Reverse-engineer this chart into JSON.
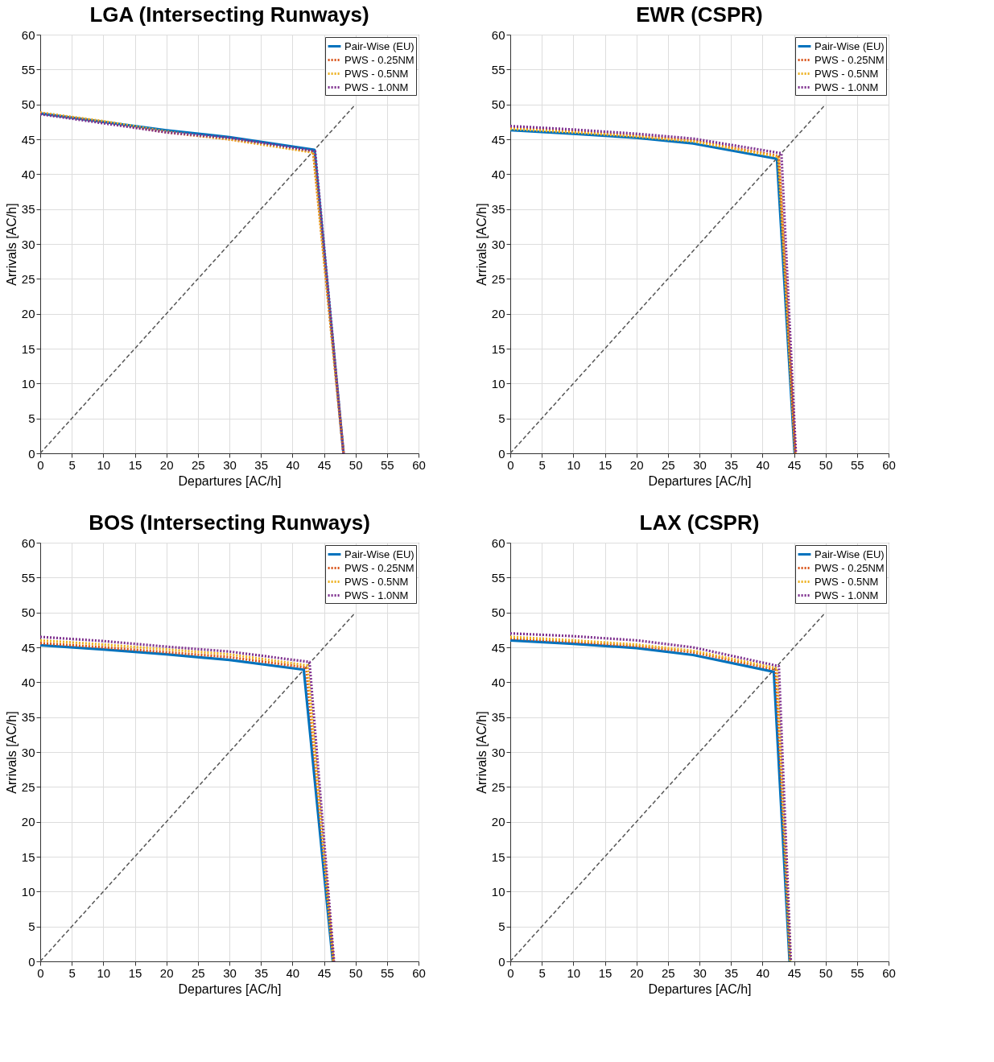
{
  "chart_data": [
    {
      "type": "line",
      "title": "LGA (Intersecting Runways)",
      "xlabel": "Departures [AC/h]",
      "ylabel": "Arrivals [AC/h]",
      "xlim": [
        0,
        60
      ],
      "ylim": [
        0,
        60
      ],
      "xticks": [
        0,
        5,
        10,
        15,
        20,
        25,
        30,
        35,
        40,
        45,
        50,
        55,
        60
      ],
      "yticks": [
        0,
        5,
        10,
        15,
        20,
        25,
        30,
        35,
        40,
        45,
        50,
        55,
        60
      ],
      "grid": true,
      "legend": "top right",
      "series": [
        {
          "name": "Pair-Wise (EU)",
          "color": "#0072bd",
          "line_style": "solid",
          "x": [
            0,
            10,
            20,
            30,
            43.5,
            48.1
          ],
          "values": [
            48.7,
            47.5,
            46.3,
            45.3,
            43.5,
            0
          ]
        },
        {
          "name": "PWS - 0.25NM",
          "color": "#d95319",
          "line_style": "dotted",
          "x": [
            0,
            10,
            20,
            30,
            43.3,
            48.1
          ],
          "values": [
            48.8,
            47.5,
            46,
            45,
            43.2,
            0
          ]
        },
        {
          "name": "PWS - 0.5NM",
          "color": "#edb120",
          "line_style": "dotted",
          "x": [
            0,
            10,
            20,
            30,
            43.3,
            48.1
          ],
          "values": [
            48.8,
            47.6,
            46.1,
            45,
            43.1,
            0
          ]
        },
        {
          "name": "PWS - 1.0NM",
          "color": "#7e2f8e",
          "line_style": "dotted",
          "x": [
            0,
            10,
            20,
            30,
            43.6,
            48.1
          ],
          "values": [
            48.6,
            47.3,
            46,
            45.2,
            43.3,
            0
          ]
        },
        {
          "color": "#555555",
          "line_style": "dashed",
          "x": [
            0,
            50
          ],
          "values": [
            0,
            50
          ]
        }
      ]
    },
    {
      "type": "line",
      "title": "EWR (CSPR)",
      "xlabel": "Departures [AC/h]",
      "ylabel": "Arrivals [AC/h]",
      "xlim": [
        0,
        60
      ],
      "ylim": [
        0,
        60
      ],
      "xticks": [
        0,
        5,
        10,
        15,
        20,
        25,
        30,
        35,
        40,
        45,
        50,
        55,
        60
      ],
      "yticks": [
        0,
        5,
        10,
        15,
        20,
        25,
        30,
        35,
        40,
        45,
        50,
        55,
        60
      ],
      "grid": true,
      "legend": "top right",
      "series": [
        {
          "name": "Pair-Wise (EU)",
          "color": "#0072bd",
          "line_style": "solid",
          "x": [
            0,
            10,
            20,
            29,
            42.3,
            45.1
          ],
          "values": [
            46.3,
            45.8,
            45.2,
            44.4,
            42.2,
            0
          ]
        },
        {
          "name": "PWS - 0.25NM",
          "color": "#d95319",
          "line_style": "dotted",
          "x": [
            0,
            10,
            20,
            29,
            42.6,
            45.2
          ],
          "values": [
            46.6,
            46.1,
            45.5,
            44.8,
            42.6,
            0
          ]
        },
        {
          "name": "PWS - 0.5NM",
          "color": "#edb120",
          "line_style": "dotted",
          "x": [
            0,
            10,
            20,
            29,
            42.5,
            45.2
          ],
          "values": [
            46.5,
            46,
            45.4,
            44.7,
            42.5,
            0
          ]
        },
        {
          "name": "PWS - 1.0NM",
          "color": "#7e2f8e",
          "line_style": "dotted",
          "x": [
            0,
            10,
            20,
            29,
            43,
            45.3
          ],
          "values": [
            46.9,
            46.4,
            45.8,
            45.1,
            43,
            0
          ]
        },
        {
          "color": "#555555",
          "line_style": "dashed",
          "x": [
            0,
            50
          ],
          "values": [
            0,
            50
          ]
        }
      ]
    },
    {
      "type": "line",
      "title": "BOS (Intersecting Runways)",
      "xlabel": "Departures [AC/h]",
      "ylabel": "Arrivals [AC/h]",
      "xlim": [
        0,
        60
      ],
      "ylim": [
        0,
        60
      ],
      "xticks": [
        0,
        5,
        10,
        15,
        20,
        25,
        30,
        35,
        40,
        45,
        50,
        55,
        60
      ],
      "yticks": [
        0,
        5,
        10,
        15,
        20,
        25,
        30,
        35,
        40,
        45,
        50,
        55,
        60
      ],
      "grid": true,
      "legend": "top right",
      "series": [
        {
          "name": "Pair-Wise (EU)",
          "color": "#0072bd",
          "line_style": "solid",
          "x": [
            0,
            10,
            20,
            30,
            41.8,
            46.4
          ],
          "values": [
            45.3,
            44.7,
            44,
            43.2,
            41.8,
            0
          ]
        },
        {
          "name": "PWS - 0.25NM",
          "color": "#d95319",
          "line_style": "dotted",
          "x": [
            0,
            10,
            20,
            30,
            42.2,
            46.5
          ],
          "values": [
            45.6,
            45,
            44.3,
            43.6,
            42.1,
            0
          ]
        },
        {
          "name": "PWS - 0.5NM",
          "color": "#edb120",
          "line_style": "dotted",
          "x": [
            0,
            10,
            20,
            30,
            42.4,
            46.5
          ],
          "values": [
            46,
            45.4,
            44.7,
            44,
            42.4,
            0
          ]
        },
        {
          "name": "PWS - 1.0NM",
          "color": "#7e2f8e",
          "line_style": "dotted",
          "x": [
            0,
            10,
            20,
            30,
            42.7,
            46.6
          ],
          "values": [
            46.5,
            45.9,
            45.1,
            44.4,
            42.9,
            0
          ]
        },
        {
          "color": "#555555",
          "line_style": "dashed",
          "x": [
            0,
            50
          ],
          "values": [
            0,
            50
          ]
        }
      ]
    },
    {
      "type": "line",
      "title": "LAX (CSPR)",
      "xlabel": "Departures [AC/h]",
      "ylabel": "Arrivals [AC/h]",
      "xlim": [
        0,
        60
      ],
      "ylim": [
        0,
        60
      ],
      "xticks": [
        0,
        5,
        10,
        15,
        20,
        25,
        30,
        35,
        40,
        45,
        50,
        55,
        60
      ],
      "yticks": [
        0,
        5,
        10,
        15,
        20,
        25,
        30,
        35,
        40,
        45,
        50,
        55,
        60
      ],
      "grid": true,
      "legend": "top right",
      "series": [
        {
          "name": "Pair-Wise (EU)",
          "color": "#0072bd",
          "line_style": "solid",
          "x": [
            0,
            10,
            20,
            29,
            41.8,
            44.3
          ],
          "values": [
            46,
            45.5,
            44.9,
            43.9,
            41.5,
            0
          ]
        },
        {
          "name": "PWS - 0.25NM",
          "color": "#d95319",
          "line_style": "dotted",
          "x": [
            0,
            10,
            20,
            29,
            42.1,
            44.4
          ],
          "values": [
            46.3,
            45.8,
            45.2,
            44.3,
            41.8,
            0
          ]
        },
        {
          "name": "PWS - 0.5NM",
          "color": "#edb120",
          "line_style": "dotted",
          "x": [
            0,
            10,
            20,
            29,
            42.3,
            44.4
          ],
          "values": [
            46.5,
            46,
            45.4,
            44.5,
            42,
            0
          ]
        },
        {
          "name": "PWS - 1.0NM",
          "color": "#7e2f8e",
          "line_style": "dotted",
          "x": [
            0,
            10,
            20,
            29,
            42.6,
            44.5
          ],
          "values": [
            47,
            46.6,
            46,
            45,
            42.3,
            0
          ]
        },
        {
          "color": "#555555",
          "line_style": "dashed",
          "x": [
            0,
            50
          ],
          "values": [
            0,
            50
          ]
        }
      ]
    }
  ]
}
